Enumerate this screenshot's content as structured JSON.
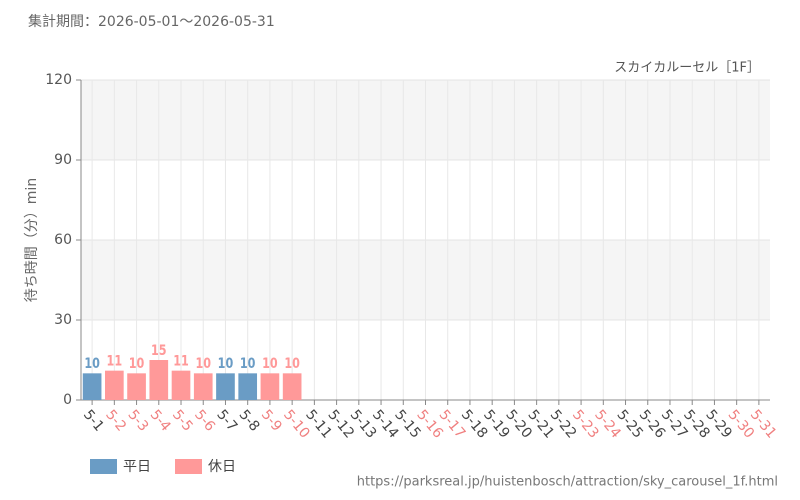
{
  "chart_data": {
    "type": "bar",
    "header": "集計期間：2026-05-01～2026-05-31",
    "title": "スカイカルーセル［1F］",
    "y_label": "待ち時間（分）min",
    "footer": "https://parksreal.jp/huistenbosch/attraction/sky_carousel_1f.html",
    "categories": [
      "5-1",
      "5-2",
      "5-3",
      "5-4",
      "5-5",
      "5-6",
      "5-7",
      "5-8",
      "5-9",
      "5-10",
      "5-11",
      "5-12",
      "5-13",
      "5-14",
      "5-15",
      "5-16",
      "5-17",
      "5-18",
      "5-19",
      "5-20",
      "5-21",
      "5-22",
      "5-23",
      "5-24",
      "5-25",
      "5-26",
      "5-27",
      "5-28",
      "5-29",
      "5-30",
      "5-31"
    ],
    "category_colors": [
      "#444",
      "#f08080",
      "#f08080",
      "#f08080",
      "#f08080",
      "#f08080",
      "#444",
      "#444",
      "#f08080",
      "#f08080",
      "#444",
      "#444",
      "#444",
      "#444",
      "#444",
      "#f08080",
      "#f08080",
      "#444",
      "#444",
      "#444",
      "#444",
      "#444",
      "#f08080",
      "#f08080",
      "#444",
      "#444",
      "#444",
      "#444",
      "#444",
      "#f08080",
      "#f08080"
    ],
    "series": [
      {
        "name": "平日",
        "color": "#6a9cc5",
        "values": [
          10,
          null,
          null,
          null,
          null,
          null,
          10,
          10,
          null,
          null,
          null,
          null,
          null,
          null,
          null,
          null,
          null,
          null,
          null,
          null,
          null,
          null,
          null,
          null,
          null,
          null,
          null,
          null,
          null,
          null,
          null
        ]
      },
      {
        "name": "休日",
        "color": "#ff9999",
        "values": [
          null,
          11,
          10,
          15,
          11,
          10,
          null,
          null,
          10,
          10,
          null,
          null,
          null,
          null,
          null,
          null,
          null,
          null,
          null,
          null,
          null,
          null,
          null,
          null,
          null,
          null,
          null,
          null,
          null,
          null,
          null
        ]
      }
    ],
    "ylim": [
      0,
      120
    ],
    "yticks": [
      0,
      30,
      60,
      90,
      120
    ],
    "grid": true
  }
}
